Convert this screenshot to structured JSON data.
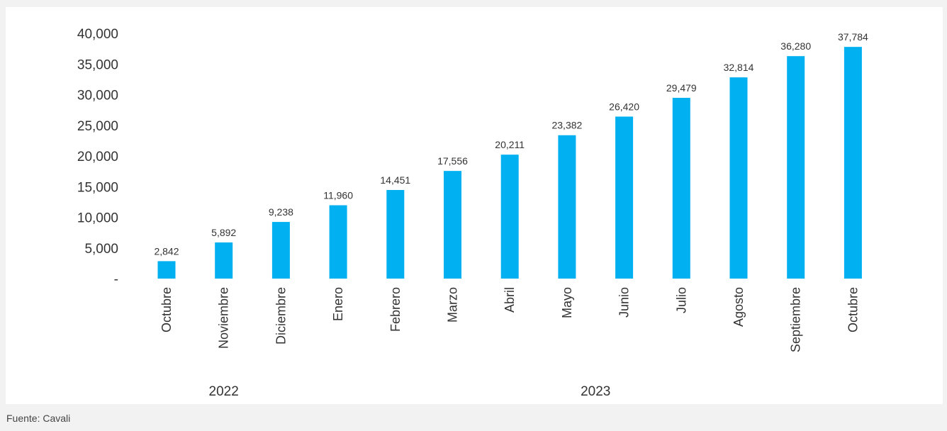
{
  "chart_data": {
    "type": "bar",
    "title": "",
    "xlabel": "",
    "ylabel": "",
    "categories": [
      "Octubre",
      "Noviembre",
      "Diciembre",
      "Enero",
      "Febrero",
      "Marzo",
      "Abril",
      "Mayo",
      "Junio",
      "Julio",
      "Agosto",
      "Septiembre",
      "Octubre"
    ],
    "values": [
      2842,
      5892,
      9238,
      11960,
      14451,
      17556,
      20211,
      23382,
      26420,
      29479,
      32814,
      36280,
      37784
    ],
    "data_labels": [
      "2,842",
      "5,892",
      "9,238",
      "11,960",
      "14,451",
      "17,556",
      "20,211",
      "23,382",
      "26,420",
      "29,479",
      "32,814",
      "36,280",
      "37,784"
    ],
    "ylim": [
      0,
      40000
    ],
    "yticks": [
      0,
      5000,
      10000,
      15000,
      20000,
      25000,
      30000,
      35000,
      40000
    ],
    "ytick_labels": [
      "-",
      "5,000",
      "10,000",
      "15,000",
      "20,000",
      "25,000",
      "30,000",
      "35,000",
      "40,000"
    ],
    "groups": [
      {
        "label": "2022",
        "categories": [
          "Octubre",
          "Noviembre",
          "Diciembre"
        ]
      },
      {
        "label": "2023",
        "categories": [
          "Enero",
          "Febrero",
          "Marzo",
          "Abril",
          "Mayo",
          "Junio",
          "Julio",
          "Agosto",
          "Septiembre",
          "Octubre"
        ]
      }
    ],
    "grid": false,
    "legend": "none",
    "bar_color": "#00b0f0"
  },
  "source": "Fuente: Cavali"
}
